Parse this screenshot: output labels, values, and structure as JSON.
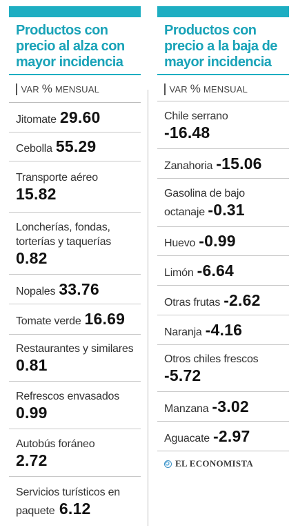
{
  "left": {
    "title": "Productos con precio al alza con mayor incidencia",
    "var_prefix": "VAR ",
    "var_pct": "%",
    "var_suffix": " MENSUAL",
    "items": [
      {
        "name": "Jitomate",
        "value": "29.60"
      },
      {
        "name": "Cebolla",
        "value": "55.29"
      },
      {
        "name": "Transporte aéreo",
        "value": "15.82"
      },
      {
        "name": "Loncherías, fondas, torterías y taquerías",
        "value": "0.82"
      },
      {
        "name": "Nopales",
        "value": "33.76"
      },
      {
        "name": "Tomate verde",
        "value": "16.69"
      },
      {
        "name": "Restaurantes y similares",
        "value": "0.81"
      },
      {
        "name": "Refrescos envasados",
        "value": "0.99"
      },
      {
        "name": "Autobús foráneo",
        "value": "2.72"
      },
      {
        "name": "Servicios turísticos en paquete",
        "value": "6.12"
      }
    ]
  },
  "right": {
    "title": "Productos con precio a la baja de mayor incidencia",
    "var_prefix": "VAR ",
    "var_pct": "%",
    "var_suffix": " MENSUAL",
    "items": [
      {
        "name": "Chile serrano",
        "value": "-16.48"
      },
      {
        "name": "Zanahoria",
        "value": "-15.06"
      },
      {
        "name": "Gasolina de bajo octanaje",
        "value": "-0.31"
      },
      {
        "name": "Huevo",
        "value": "-0.99"
      },
      {
        "name": "Limón",
        "value": "-6.64"
      },
      {
        "name": "Otras frutas",
        "value": "-2.62"
      },
      {
        "name": "Naranja",
        "value": "-4.16"
      },
      {
        "name": "Otros chiles frescos",
        "value": "-5.72"
      },
      {
        "name": "Manzana",
        "value": "-3.02"
      },
      {
        "name": "Aguacate",
        "value": "-2.97"
      }
    ],
    "logo": "EL ECONOMISTA"
  },
  "colors": {
    "accent": "#1eaec2",
    "heading": "#1aa3b8"
  }
}
